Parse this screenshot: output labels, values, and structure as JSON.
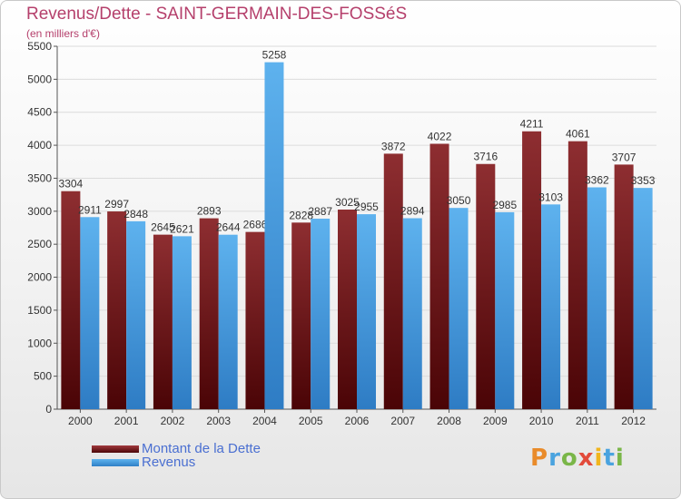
{
  "title": "Revenus/Dette - SAINT-GERMAIN-DES-FOSSéS",
  "subtitle": "(en milliers d'€)",
  "brand": {
    "letters": [
      "P",
      "r",
      "o",
      "x",
      "i",
      "t",
      "i"
    ],
    "colors": [
      "#e98b2a",
      "#4aa3df",
      "#7ab648",
      "#e24a3a",
      "#f1b51c",
      "#4aa3df",
      "#7ab648"
    ]
  },
  "chart_data": {
    "type": "bar",
    "categories": [
      "2000",
      "2001",
      "2002",
      "2003",
      "2004",
      "2005",
      "2006",
      "2007",
      "2008",
      "2009",
      "2010",
      "2011",
      "2012"
    ],
    "series": [
      {
        "name": "Montant de la Dette",
        "color": "#7a1a1c",
        "values": [
          3304,
          2997,
          2645,
          2893,
          2686,
          2828,
          3025,
          3872,
          4022,
          3716,
          4211,
          4061,
          3707
        ]
      },
      {
        "name": "Revenus",
        "color": "#3d95dd",
        "values": [
          2911,
          2848,
          2621,
          2644,
          5258,
          2887,
          2955,
          2894,
          3050,
          2985,
          3103,
          3362,
          3353
        ]
      }
    ],
    "ylim": [
      0,
      5500
    ],
    "yticks": [
      0,
      500,
      1000,
      1500,
      2000,
      2500,
      3000,
      3500,
      4000,
      4500,
      5000,
      5500
    ],
    "grid": true,
    "legend": "bottom-left"
  }
}
